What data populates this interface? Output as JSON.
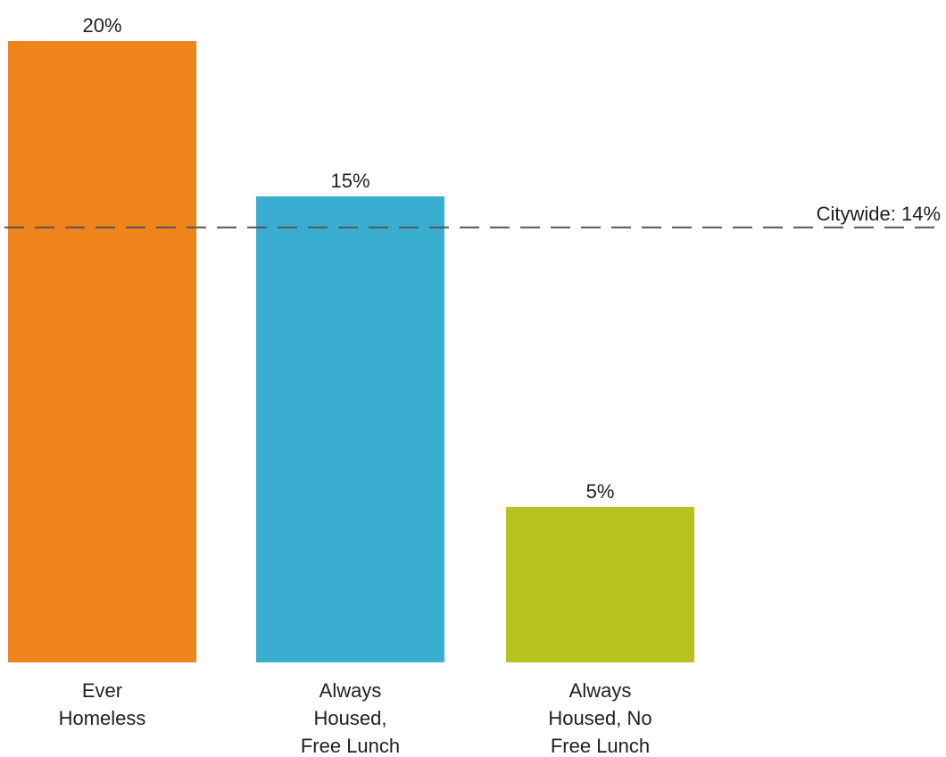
{
  "chart_data": {
    "type": "bar",
    "categories": [
      [
        "Ever",
        "Homeless"
      ],
      [
        "Always",
        "Housed,",
        "Free Lunch"
      ],
      [
        "Always",
        "Housed, No",
        "Free Lunch"
      ]
    ],
    "values": [
      20,
      15,
      5
    ],
    "value_labels": [
      "20%",
      "15%",
      "5%"
    ],
    "colors": [
      "#f0841c",
      "#3aaed0",
      "#b8c21f"
    ],
    "ylim": [
      0,
      20
    ],
    "grid": false,
    "reference_line": {
      "value": 14,
      "label": "Citywide: 14%",
      "style": "dashed",
      "color": "#555555"
    }
  }
}
